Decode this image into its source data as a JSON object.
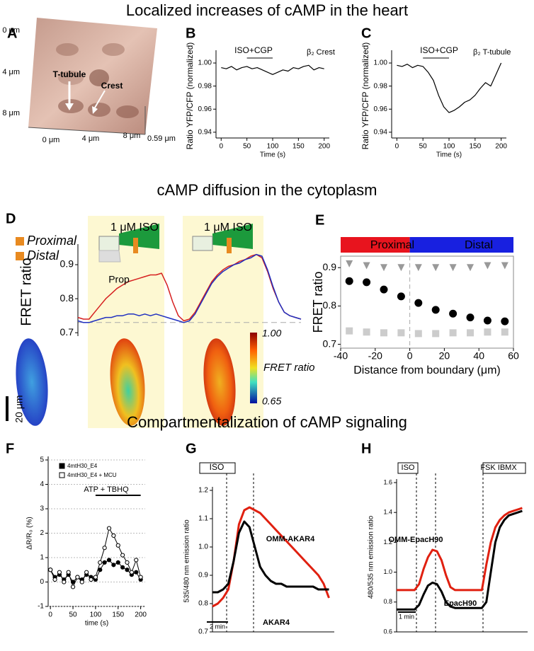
{
  "headings": [
    "Localized increases of cAMP in the heart",
    "cAMP diffusion in the cytoplasm",
    "Compartmentalization of cAMP signaling"
  ],
  "panel_labels": [
    "A",
    "B",
    "C",
    "D",
    "E",
    "F",
    "G",
    "H"
  ],
  "panel_a": {
    "y_labels": [
      "0 μm",
      "4 μm",
      "8 μm"
    ],
    "x_labels": [
      "0 μm",
      "4 μm",
      "8 μm"
    ],
    "z_label": "0.59 μm",
    "arrows": [
      "T-tubule",
      "Crest"
    ]
  },
  "chart_data": [
    {
      "type": "line",
      "frame": "axes",
      "x_label": "Time (s)",
      "y_label": "Ratio YFP/CFP (normalized)",
      "x": [
        0,
        10,
        20,
        30,
        40,
        50,
        60,
        70,
        80,
        90,
        100,
        110,
        120,
        130,
        140,
        150,
        160,
        170,
        180,
        190,
        200
      ],
      "series": [
        {
          "color": "#000000",
          "values": [
            0.996,
            0.995,
            0.997,
            0.994,
            0.996,
            0.997,
            0.995,
            0.996,
            0.994,
            0.992,
            0.99,
            0.992,
            0.994,
            0.993,
            0.996,
            0.995,
            0.997,
            0.998,
            0.994,
            0.996,
            0.995
          ]
        }
      ],
      "xlim": [
        -10,
        210
      ],
      "xticks": [
        0,
        50,
        100,
        150,
        200
      ],
      "ylim": [
        0.935,
        1.008
      ],
      "yticks": [
        0.94,
        0.96,
        0.98,
        {
          "value": 1,
          "label": "1.00"
        }
      ],
      "annotations": [
        "ISO+CGP",
        "β₂ Crest"
      ]
    },
    {
      "type": "line",
      "frame": "axes",
      "x_label": "Time (s)",
      "y_label": "Ratio YFP/CFP (normalized)",
      "x": [
        0,
        10,
        20,
        30,
        40,
        50,
        60,
        70,
        80,
        90,
        100,
        110,
        120,
        130,
        140,
        150,
        160,
        170,
        180,
        190,
        200
      ],
      "series": [
        {
          "color": "#000000",
          "values": [
            0.998,
            0.997,
            0.999,
            0.996,
            0.998,
            0.997,
            0.992,
            0.985,
            0.972,
            0.962,
            0.957,
            0.959,
            0.962,
            0.966,
            0.968,
            0.972,
            0.978,
            0.983,
            0.98,
            0.99,
            1.0
          ]
        }
      ],
      "xlim": [
        -10,
        210
      ],
      "xticks": [
        0,
        50,
        100,
        150,
        200
      ],
      "ylim": [
        0.935,
        1.008
      ],
      "yticks": [
        0.94,
        0.96,
        0.98,
        {
          "value": 1,
          "label": "1.00"
        }
      ],
      "annotations": [
        "ISO+CGP",
        "β₂ T-tubule"
      ]
    },
    {
      "type": "line",
      "frame": "left",
      "y_label": "FRET ratio",
      "legend": "upper left",
      "x": [
        0,
        1,
        2,
        3,
        4,
        5,
        6,
        7,
        8,
        9,
        10,
        11,
        12,
        13,
        14,
        15,
        16,
        17,
        18,
        19,
        20,
        21,
        22,
        23,
        24,
        25,
        26,
        27,
        28,
        29,
        30,
        31,
        32,
        33,
        34,
        35,
        36,
        37,
        38,
        39,
        40
      ],
      "series": [
        {
          "name": "Proximal",
          "color": "#d62020",
          "values": [
            0.745,
            0.74,
            0.74,
            0.76,
            0.78,
            0.8,
            0.815,
            0.83,
            0.84,
            0.85,
            0.855,
            0.86,
            0.865,
            0.87,
            0.87,
            0.875,
            0.84,
            0.79,
            0.75,
            0.735,
            0.74,
            0.76,
            0.79,
            0.82,
            0.85,
            0.87,
            0.885,
            0.895,
            0.9,
            0.91,
            0.915,
            0.925,
            0.93,
            0.92,
            0.88,
            0.83,
            0.79,
            0.76,
            0.75,
            0.745,
            0.74
          ]
        },
        {
          "name": "Distal",
          "color": "#2030c0",
          "values": [
            0.735,
            0.73,
            0.73,
            0.735,
            0.74,
            0.745,
            0.745,
            0.75,
            0.75,
            0.755,
            0.755,
            0.75,
            0.755,
            0.75,
            0.755,
            0.75,
            0.745,
            0.74,
            0.735,
            0.73,
            0.735,
            0.755,
            0.785,
            0.815,
            0.845,
            0.865,
            0.88,
            0.89,
            0.9,
            0.905,
            0.915,
            0.92,
            0.93,
            0.925,
            0.885,
            0.835,
            0.79,
            0.76,
            0.75,
            0.745,
            0.74
          ]
        }
      ],
      "xlim": [
        0,
        40
      ],
      "ylim": [
        0.69,
        0.95
      ],
      "yticks": [
        0.7,
        0.8,
        0.9
      ],
      "annotations": [
        "1 μM ISO",
        "1 μM ISO",
        "Prop"
      ],
      "colorbar": {
        "ticks": [
          {
            "value": 1,
            "label": "1.00"
          },
          0.65
        ],
        "label": "FRET ratio"
      },
      "scale_bar": "20 μm"
    },
    {
      "type": "scatter",
      "frame": "box",
      "x_label": "Distance from boundary (μm)",
      "y_label": "FRET ratio",
      "x": [
        -35,
        -25,
        -15,
        -5,
        5,
        15,
        25,
        35,
        45,
        55
      ],
      "series": [
        {
          "color": "#999999",
          "marker": "triangle",
          "values": [
            0.91,
            0.905,
            0.9,
            0.9,
            0.9,
            0.9,
            0.9,
            0.9,
            0.905,
            0.905
          ]
        },
        {
          "color": "#000000",
          "marker": "circle",
          "values": [
            0.865,
            0.862,
            0.843,
            0.825,
            0.808,
            0.79,
            0.78,
            0.77,
            0.762,
            0.76
          ]
        },
        {
          "color": "#cccccc",
          "marker": "square",
          "values": [
            0.735,
            0.732,
            0.73,
            0.73,
            0.728,
            0.728,
            0.73,
            0.73,
            0.732,
            0.732
          ]
        }
      ],
      "xlim": [
        -40,
        60
      ],
      "xticks": [
        -40,
        -20,
        0,
        20,
        40,
        60
      ],
      "ylim": [
        0.69,
        0.93
      ],
      "yticks": [
        0.7,
        0.8,
        0.9
      ],
      "annotations": [
        "Proximal",
        "Distal"
      ]
    },
    {
      "type": "line",
      "frame": "axes",
      "grid": true,
      "legend": "upper left",
      "x_label": "time (s)",
      "y_label": "ΔR/R₀ (%)",
      "x": [
        0,
        10,
        20,
        30,
        40,
        50,
        60,
        70,
        80,
        90,
        100,
        110,
        120,
        130,
        140,
        150,
        160,
        170,
        180,
        190,
        200
      ],
      "series": [
        {
          "name": "4mtH30_E4",
          "color": "#000000",
          "marker": "circle",
          "marker_fill": "#000000",
          "values": [
            0.5,
            0.2,
            0.3,
            0.1,
            0.3,
            0,
            0.2,
            0.1,
            0.3,
            0.2,
            0.1,
            0.5,
            0.8,
            0.9,
            0.7,
            0.8,
            0.6,
            0.5,
            0.3,
            0.4,
            0.1
          ]
        },
        {
          "name": "4mtH30_E4 + MCU",
          "color": "#000000",
          "marker": "circle",
          "marker_fill": "#ffffff",
          "values": [
            0.5,
            0.1,
            0.4,
            0,
            0.4,
            -0.2,
            0.2,
            0,
            0.4,
            0.1,
            0.2,
            0.8,
            1.4,
            2.2,
            1.9,
            1.5,
            1.1,
            0.8,
            0.4,
            0.9,
            0.2
          ]
        }
      ],
      "xlim": [
        -5,
        210
      ],
      "xticks": [
        0,
        50,
        100,
        150,
        200
      ],
      "ylim": [
        -1,
        5
      ],
      "yticks": [
        -1,
        0,
        1,
        2,
        3,
        4,
        5
      ],
      "annotations": [
        "ATP + TBHQ"
      ]
    },
    {
      "type": "line",
      "frame": "axes",
      "legend": "direct",
      "y_label": "535/480 nm emission ratio",
      "x": [
        0,
        0.5,
        1,
        1.5,
        2,
        2.5,
        3,
        3.5,
        4,
        4.5,
        5,
        5.5,
        6,
        6.5,
        7,
        7.5,
        8,
        8.5,
        9,
        9.5,
        10,
        10.5,
        11
      ],
      "series": [
        {
          "name": "OMM-AKAR4",
          "color": "#e02010",
          "values": [
            0.79,
            0.8,
            0.82,
            0.85,
            0.95,
            1.08,
            1.13,
            1.14,
            1.13,
            1.12,
            1.1,
            1.08,
            1.06,
            1.04,
            1.02,
            1.0,
            0.98,
            0.96,
            0.94,
            0.92,
            0.9,
            0.87,
            0.82
          ]
        },
        {
          "name": "AKAR4",
          "color": "#000000",
          "values": [
            0.84,
            0.84,
            0.85,
            0.87,
            0.95,
            1.05,
            1.09,
            1.07,
            1.0,
            0.93,
            0.9,
            0.88,
            0.87,
            0.87,
            0.86,
            0.86,
            0.86,
            0.86,
            0.86,
            0.86,
            0.85,
            0.85,
            0.85
          ]
        }
      ],
      "xlim": [
        0,
        11.5
      ],
      "ylim": [
        0.7,
        1.2
      ],
      "yticks": [
        0.7,
        0.8,
        0.9,
        {
          "value": 1,
          "label": "1.0"
        },
        1.1,
        1.2
      ],
      "annotations": [
        "ISO",
        "2 min"
      ]
    },
    {
      "type": "line",
      "frame": "axes",
      "legend": "direct",
      "y_label": "480/535 nm emission ratio",
      "x": [
        0,
        0.25,
        0.5,
        0.75,
        1,
        1.25,
        1.5,
        1.75,
        2,
        2.25,
        2.5,
        2.75,
        3,
        3.25,
        3.5,
        3.75,
        4,
        4.25,
        4.5,
        4.75,
        5,
        5.25,
        5.5,
        5.75,
        6,
        6.25,
        6.5,
        6.75,
        7
      ],
      "series": [
        {
          "name": "OMM-EpacH90",
          "color": "#e02010",
          "values": [
            0.88,
            0.88,
            0.88,
            0.88,
            0.88,
            0.92,
            1.02,
            1.1,
            1.15,
            1.14,
            1.08,
            0.98,
            0.9,
            0.88,
            0.88,
            0.88,
            0.88,
            0.88,
            0.88,
            0.88,
            1.05,
            1.2,
            1.3,
            1.35,
            1.38,
            1.4,
            1.41,
            1.42,
            1.43
          ]
        },
        {
          "name": "EpacH90",
          "color": "#000000",
          "values": [
            0.75,
            0.75,
            0.75,
            0.75,
            0.75,
            0.78,
            0.85,
            0.91,
            0.93,
            0.92,
            0.87,
            0.8,
            0.77,
            0.76,
            0.76,
            0.76,
            0.76,
            0.76,
            0.76,
            0.76,
            0.8,
            1.0,
            1.2,
            1.3,
            1.35,
            1.38,
            1.39,
            1.4,
            1.41
          ]
        }
      ],
      "xlim": [
        0,
        7.3
      ],
      "ylim": [
        0.6,
        1.6
      ],
      "yticks": [
        0.6,
        0.8,
        {
          "value": 1,
          "label": "1.0"
        },
        1.2,
        1.4,
        1.6
      ],
      "annotations": [
        "ISO",
        "FSK IBMX",
        "1 min"
      ]
    }
  ]
}
